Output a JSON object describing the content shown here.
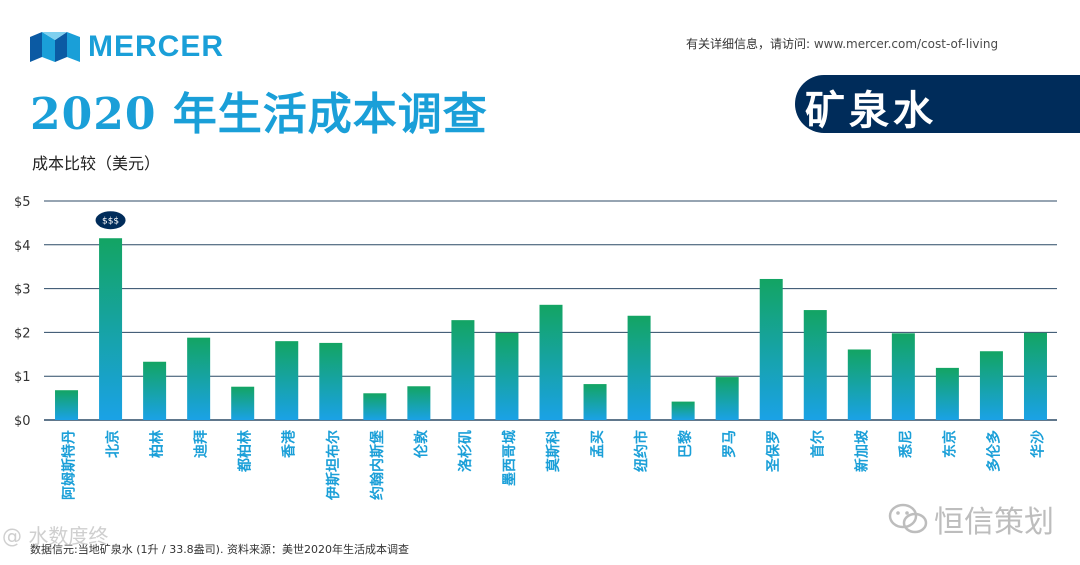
{
  "brand": {
    "name": "MERCER",
    "color": "#1a9fd8",
    "dark": "#0b5aa3"
  },
  "header": {
    "info_prefix": "有关详细信息，请访问: ",
    "info_url": "www.mercer.com/cost-of-living",
    "title": "2020 年生活成本调查",
    "banner": "矿泉水"
  },
  "watermarks": {
    "left": "@ 水数度终",
    "right": "恒信策划"
  },
  "chart_data": {
    "type": "bar",
    "title": "成本比较（美元）",
    "xlabel": "",
    "ylabel": "",
    "ylim": [
      0,
      5
    ],
    "yticks": [
      "$0",
      "$1",
      "$2",
      "$3",
      "$4",
      "$5"
    ],
    "grid": true,
    "categories": [
      "阿姆斯特丹",
      "北京",
      "柏林",
      "迪拜",
      "都柏林",
      "香港",
      "伊斯坦布尔",
      "约翰内斯堡",
      "伦敦",
      "洛杉矶",
      "墨西哥城",
      "莫斯科",
      "孟买",
      "纽约市",
      "巴黎",
      "罗马",
      "圣保罗",
      "首尔",
      "新加坡",
      "悉尼",
      "东京",
      "多伦多",
      "华沙"
    ],
    "values": [
      0.68,
      4.15,
      1.33,
      1.88,
      0.76,
      1.8,
      1.76,
      0.61,
      0.77,
      2.28,
      1.99,
      2.63,
      0.82,
      2.38,
      0.42,
      0.98,
      3.22,
      2.51,
      1.61,
      1.98,
      1.19,
      1.57,
      1.99
    ],
    "annotation": {
      "category": "北京",
      "text": "$$$"
    },
    "bar_gradient": {
      "top": "#13a463",
      "bottom": "#1aa2e6"
    },
    "grid_color": "#2c4a66"
  },
  "footnote": "数据信元:当地矿泉水 (1升 / 33.8盎司). 资料来源：美世2020年生活成本调查"
}
